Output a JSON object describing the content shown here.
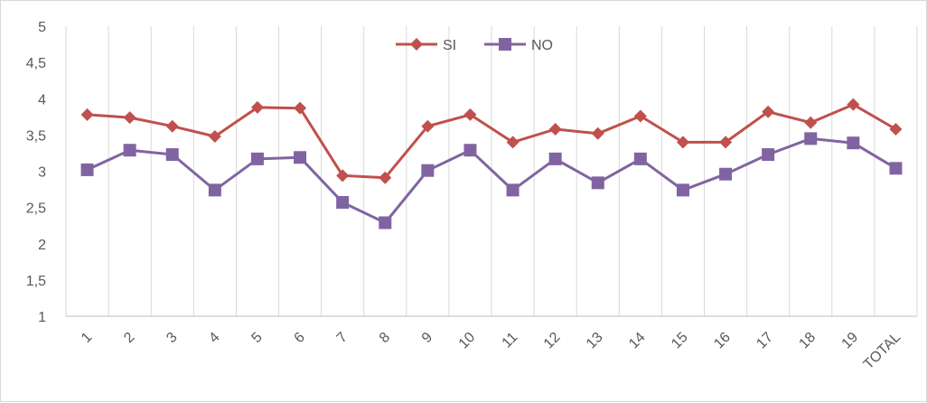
{
  "chart_data": {
    "type": "line",
    "categories": [
      "1",
      "2",
      "3",
      "4",
      "5",
      "6",
      "7",
      "8",
      "9",
      "10",
      "11",
      "12",
      "13",
      "14",
      "15",
      "16",
      "17",
      "18",
      "19",
      "TOTAL"
    ],
    "series": [
      {
        "name": "SI",
        "color": "#c0504d",
        "marker": "diamond",
        "values": [
          3.78,
          3.74,
          3.62,
          3.48,
          3.88,
          3.87,
          2.94,
          2.91,
          3.62,
          3.78,
          3.4,
          3.58,
          3.52,
          3.76,
          3.4,
          3.4,
          3.82,
          3.67,
          3.92,
          3.58
        ]
      },
      {
        "name": "NO",
        "color": "#8064a2",
        "marker": "square",
        "values": [
          3.02,
          3.29,
          3.23,
          2.74,
          3.17,
          3.19,
          2.57,
          2.29,
          3.01,
          3.29,
          2.74,
          3.17,
          2.84,
          3.17,
          2.74,
          2.96,
          3.23,
          3.45,
          3.39,
          3.04
        ]
      }
    ],
    "yticks": [
      "1",
      "1,5",
      "2",
      "2,5",
      "3",
      "3,5",
      "4",
      "4,5",
      "5"
    ],
    "ylim": [
      1,
      5
    ],
    "grid": "vertical",
    "legend": "top-center",
    "title": "",
    "xlabel": "",
    "ylabel": ""
  }
}
